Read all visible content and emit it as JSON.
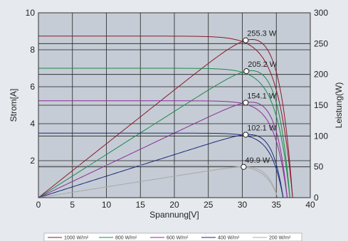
{
  "chart_data": {
    "type": "line",
    "xlabel": "Spannung[V]",
    "ylabel_left": "Strom[A]",
    "ylabel_right": "Leistung(W)",
    "xlim": [
      0,
      40
    ],
    "ylim_left": [
      0,
      10
    ],
    "ylim_right": [
      0,
      300
    ],
    "xticks": [
      "0",
      "5",
      "10",
      "15",
      "20",
      "25",
      "30",
      "35",
      "40"
    ],
    "yticks_left": [
      "2",
      "4",
      "6",
      "8",
      "10"
    ],
    "yticks_right": [
      "0",
      "50",
      "100",
      "150",
      "200",
      "250",
      "300"
    ],
    "grid": true,
    "legend_position": "bottom",
    "series": [
      {
        "name": "1000 W/m²",
        "color": "#8b1a2b",
        "isc": 8.74,
        "vmp": 30.5,
        "imp": 8.37,
        "voc": 37.4,
        "pmax": 255.3,
        "pmax_label": "255.3 W"
      },
      {
        "name": "800 W/m²",
        "color": "#1e8a4c",
        "isc": 7.0,
        "vmp": 30.6,
        "imp": 6.71,
        "voc": 37.0,
        "pmax": 205.2,
        "pmax_label": "205.2 W"
      },
      {
        "name": "600 W/m²",
        "color": "#8a2d9b",
        "isc": 5.24,
        "vmp": 30.5,
        "imp": 5.05,
        "voc": 36.6,
        "pmax": 154.1,
        "pmax_label": "154.1 W"
      },
      {
        "name": "400 W/m²",
        "color": "#1a2a7a",
        "isc": 3.49,
        "vmp": 30.5,
        "imp": 3.35,
        "voc": 36.0,
        "pmax": 102.1,
        "pmax_label": "102.1 W"
      },
      {
        "name": "200 W/m²",
        "color": "#a8a8a8",
        "isc": 1.74,
        "vmp": 30.2,
        "imp": 1.65,
        "voc": 35.2,
        "pmax": 49.9,
        "pmax_label": "49.9 W"
      }
    ]
  }
}
